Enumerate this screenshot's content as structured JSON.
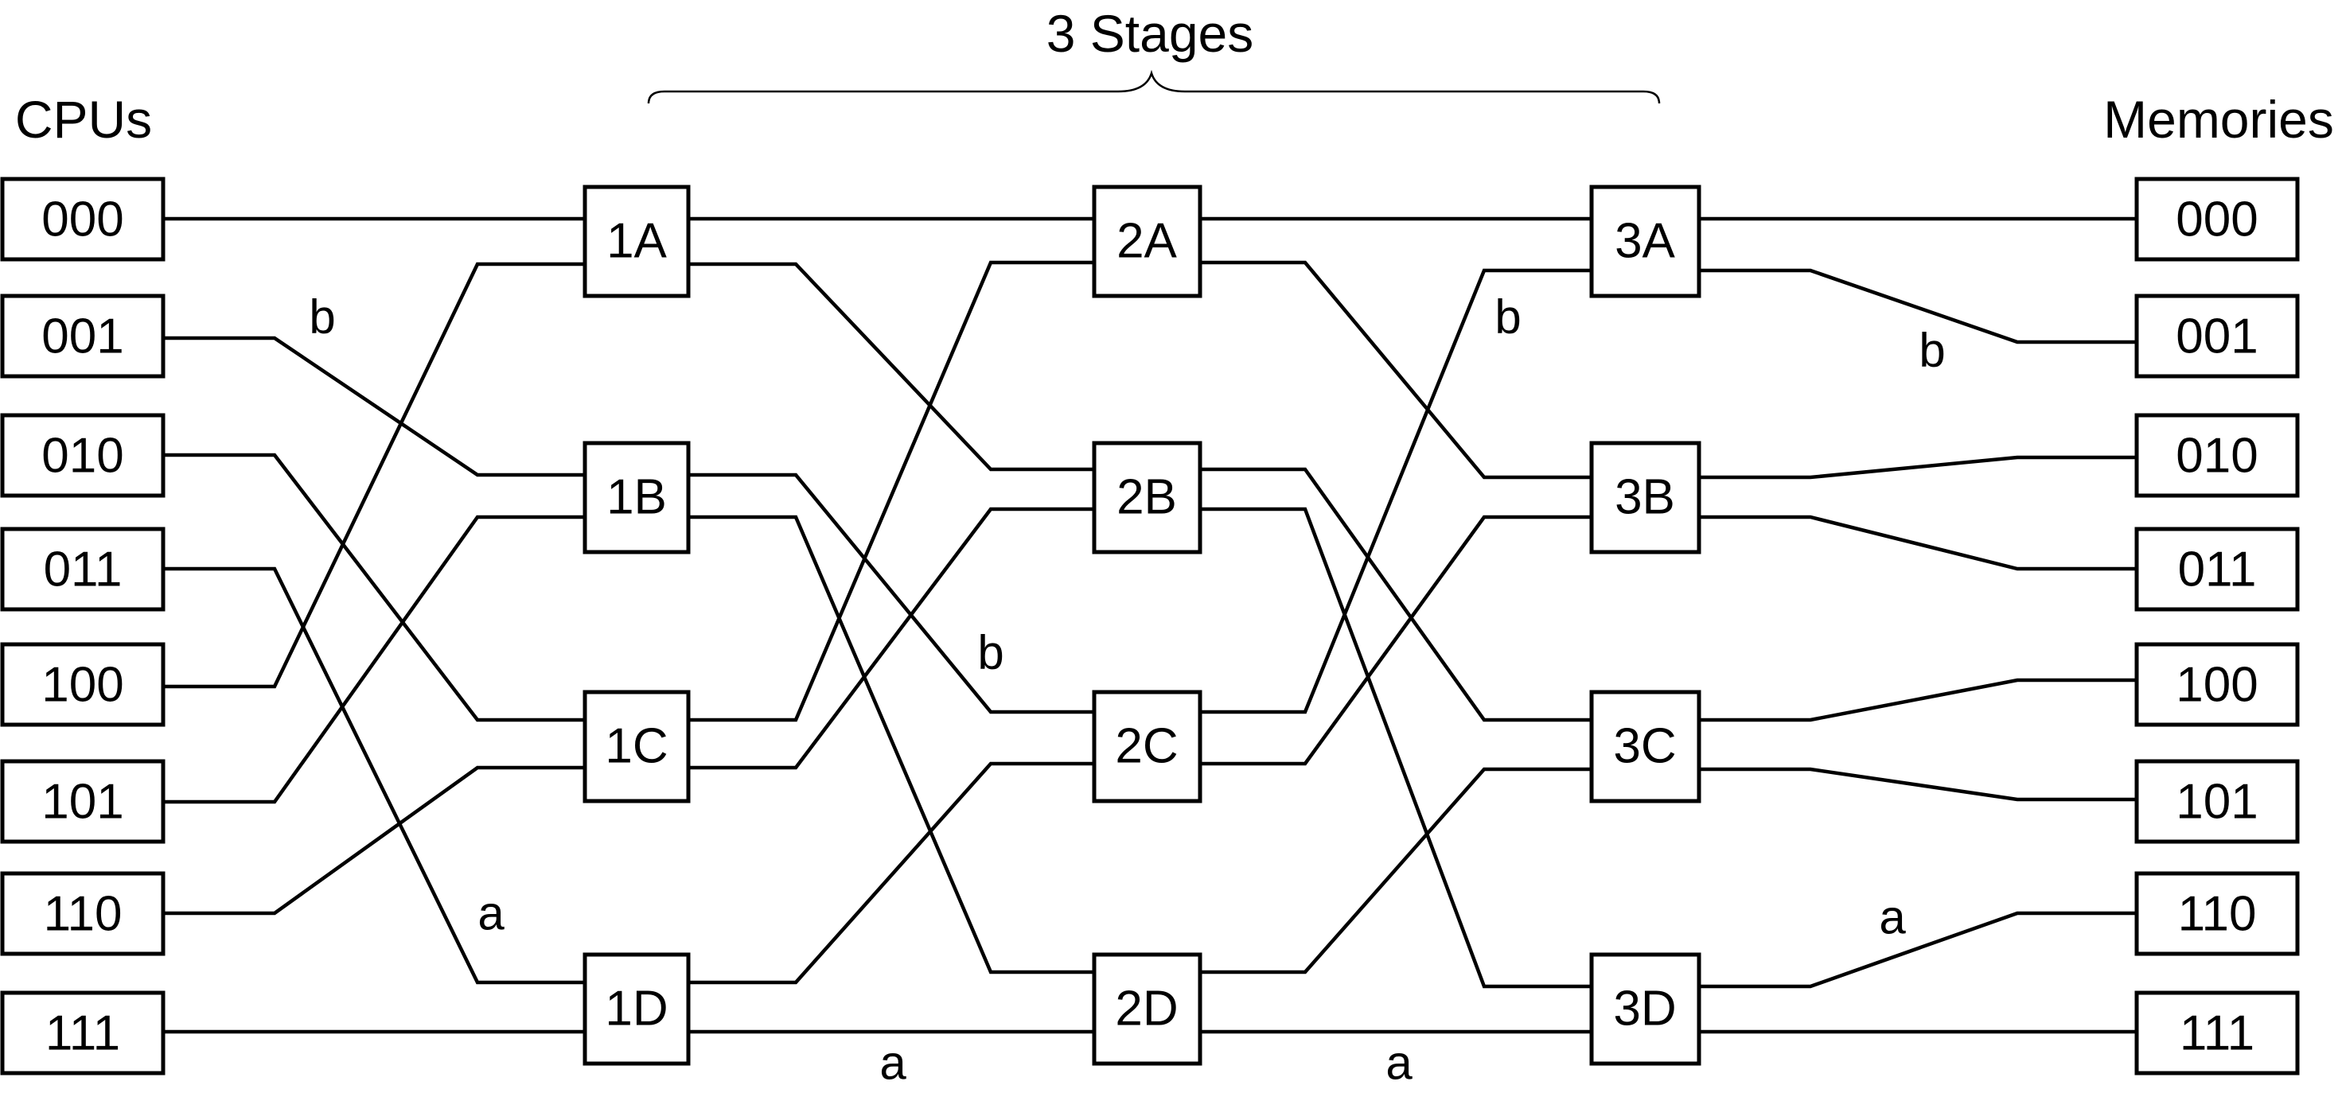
{
  "headings": {
    "stages": "3 Stages",
    "cpus": "CPUs",
    "memories": "Memories"
  },
  "cpus": [
    "000",
    "001",
    "010",
    "011",
    "100",
    "101",
    "110",
    "111"
  ],
  "memories": [
    "000",
    "001",
    "010",
    "011",
    "100",
    "101",
    "110",
    "111"
  ],
  "switches": {
    "stage1": [
      "1A",
      "1B",
      "1C",
      "1D"
    ],
    "stage2": [
      "2A",
      "2B",
      "2C",
      "2D"
    ],
    "stage3": [
      "3A",
      "3B",
      "3C",
      "3D"
    ]
  },
  "path_labels": {
    "b": [
      "b",
      "b",
      "b",
      "b"
    ],
    "a": [
      "a",
      "a",
      "a",
      "a"
    ]
  }
}
